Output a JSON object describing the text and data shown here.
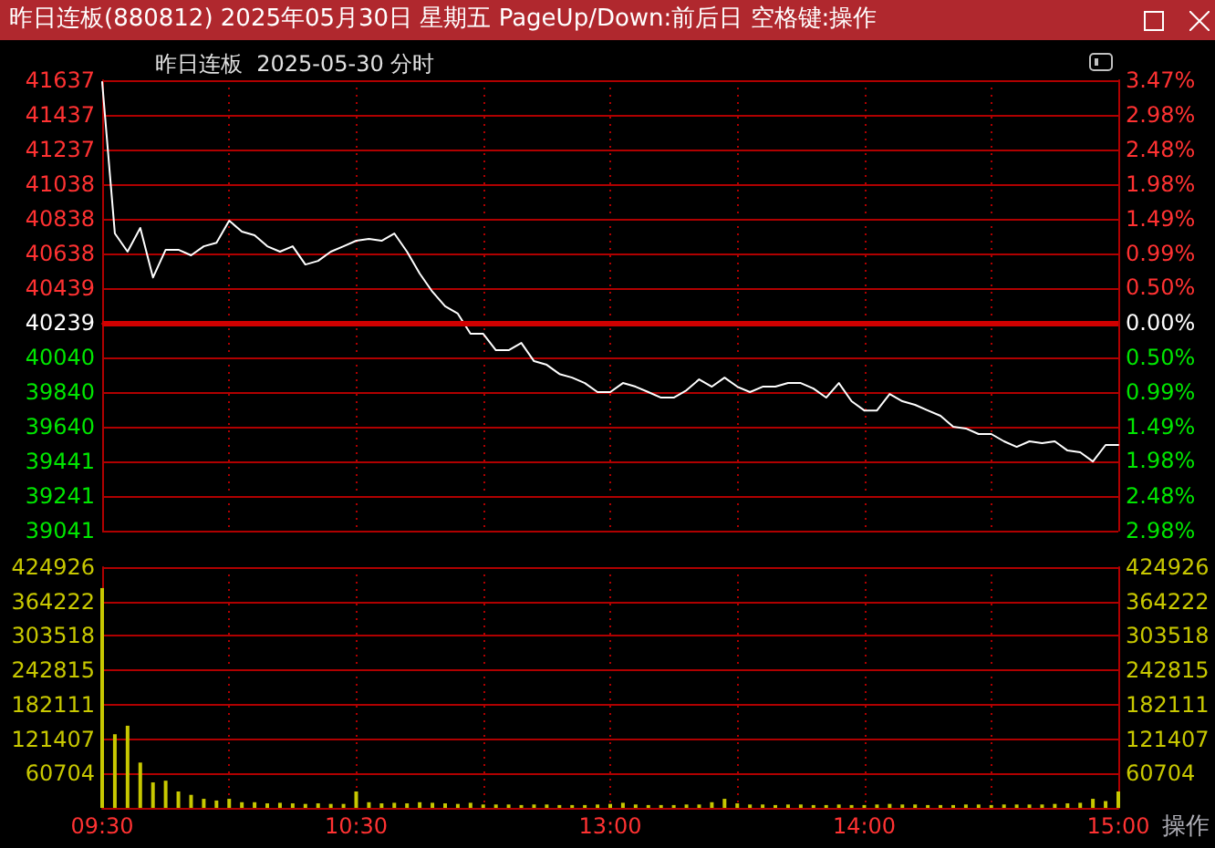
{
  "chart_data": [
    {
      "type": "line",
      "title": "昨日连板(880812) 2025年05月30日 星期五 PageUp/Down:前后日 空格键:操作",
      "subtitle": "昨日连板  2025-05-30 分时",
      "categories": [
        null,
        null,
        null,
        null,
        null,
        null,
        null,
        null,
        null,
        null,
        null,
        null,
        null,
        null,
        null,
        null,
        null,
        null,
        null,
        null,
        null,
        null,
        null,
        null,
        null,
        null,
        null,
        null,
        null,
        null,
        null,
        null,
        null,
        null,
        null,
        null,
        null,
        null,
        null,
        null,
        null,
        null,
        null,
        null,
        null,
        null,
        null,
        null,
        null,
        null,
        null,
        null,
        null,
        null,
        null,
        null,
        null,
        null,
        null,
        null,
        null,
        null,
        null,
        null,
        null,
        null,
        null,
        null,
        null,
        null,
        null,
        null,
        null,
        null,
        null,
        null,
        null,
        null,
        null,
        null,
        null
      ],
      "series": [
        {
          "color": "#ffffff",
          "values": [
            41627,
            40754,
            40649,
            40786,
            40500,
            40660,
            40660,
            40628,
            40680,
            40700,
            40828,
            40765,
            40744,
            40680,
            40649,
            40680,
            40575,
            40596,
            40649,
            40680,
            40712,
            40723,
            40712,
            40754,
            40649,
            40523,
            40418,
            40334,
            40292,
            40176,
            40176,
            40081,
            40081,
            40123,
            40018,
            39997,
            39944,
            39923,
            39892,
            39840,
            39840,
            39892,
            39871,
            39840,
            39808,
            39808,
            39850,
            39913,
            39871,
            39923,
            39871,
            39840,
            39871,
            39871,
            39892,
            39892,
            39860,
            39808,
            39892,
            39787,
            39734,
            39734,
            39829,
            39787,
            39766,
            39734,
            39703,
            39640,
            39630,
            39598,
            39598,
            39556,
            39524,
            39556,
            39545,
            39556,
            39503,
            39493,
            39440,
            39535,
            39535
          ]
        }
      ],
      "ylim": [
        39041,
        41637
      ],
      "yticks": [
        39041,
        39241,
        39441,
        39640,
        39840,
        40040,
        40239,
        40439,
        40638,
        40838,
        41038,
        41237,
        41437,
        41637
      ],
      "y2lim": [
        -2.98,
        3.47
      ],
      "y2ticks": [
        {
          "value": -2.98,
          "label": "2.98%"
        },
        {
          "value": -2.48,
          "label": "2.48%"
        },
        {
          "value": -1.98,
          "label": "1.98%"
        },
        {
          "value": -1.49,
          "label": "1.49%"
        },
        {
          "value": -0.99,
          "label": "0.99%"
        },
        {
          "value": -0.5,
          "label": "0.50%"
        },
        {
          "value": 0,
          "label": "0.00%"
        },
        {
          "value": 0.5,
          "label": "0.50%"
        },
        {
          "value": 0.99,
          "label": "0.99%"
        },
        {
          "value": 1.49,
          "label": "1.49%"
        },
        {
          "value": 1.98,
          "label": "1.98%"
        },
        {
          "value": 2.48,
          "label": "2.48%"
        },
        {
          "value": 2.98,
          "label": "2.98%"
        },
        {
          "value": 3.47,
          "label": "3.47%"
        }
      ],
      "ref_lines": [
        {
          "axis": "y",
          "value": 40239,
          "color": "#d00000"
        }
      ],
      "grid": true,
      "tick_labels": "y",
      "line_style": "solid"
    },
    {
      "type": "bar",
      "categories": [
        "09:30",
        null,
        null,
        null,
        null,
        null,
        null,
        null,
        null,
        null,
        null,
        null,
        null,
        null,
        null,
        null,
        null,
        null,
        null,
        null,
        "10:30",
        null,
        null,
        null,
        null,
        null,
        null,
        null,
        null,
        null,
        null,
        null,
        null,
        null,
        null,
        null,
        null,
        null,
        null,
        null,
        "13:00",
        null,
        null,
        null,
        null,
        null,
        null,
        null,
        null,
        null,
        null,
        null,
        null,
        null,
        null,
        null,
        null,
        null,
        null,
        null,
        "14:00",
        null,
        null,
        null,
        null,
        null,
        null,
        null,
        null,
        null,
        null,
        null,
        null,
        null,
        null,
        null,
        null,
        null,
        null,
        null,
        "15:00"
      ],
      "color": "#c8c800",
      "values": [
        388000,
        130000,
        145000,
        80000,
        45000,
        48000,
        29000,
        23000,
        16000,
        13000,
        16000,
        10000,
        10000,
        8000,
        9000,
        8000,
        7000,
        8000,
        7000,
        7000,
        29000,
        10000,
        8000,
        9000,
        8000,
        10000,
        9000,
        8000,
        7000,
        9000,
        6000,
        6000,
        6000,
        5000,
        6000,
        6000,
        5000,
        5000,
        5000,
        6000,
        7000,
        9000,
        6000,
        5000,
        5000,
        5000,
        6000,
        6000,
        10000,
        16000,
        8000,
        6000,
        6000,
        5000,
        6000,
        6000,
        5000,
        5000,
        6000,
        5000,
        5000,
        6000,
        7000,
        6000,
        6000,
        5000,
        5000,
        5000,
        6000,
        6000,
        5000,
        6000,
        6000,
        6000,
        6000,
        7000,
        8000,
        9000,
        16000,
        12000,
        29000
      ],
      "ylim": [
        0,
        424926
      ],
      "yticks": [
        {
          "value": 0,
          "label": null
        },
        60704,
        121407,
        182111,
        242815,
        303518,
        364222,
        424926
      ],
      "y2lim": [
        0,
        424926
      ],
      "y2ticks": [
        {
          "value": 0,
          "label": null
        },
        60704,
        121407,
        182111,
        242815,
        303518,
        364222,
        424926
      ],
      "annotations": [
        "操作"
      ],
      "grid": true
    }
  ]
}
